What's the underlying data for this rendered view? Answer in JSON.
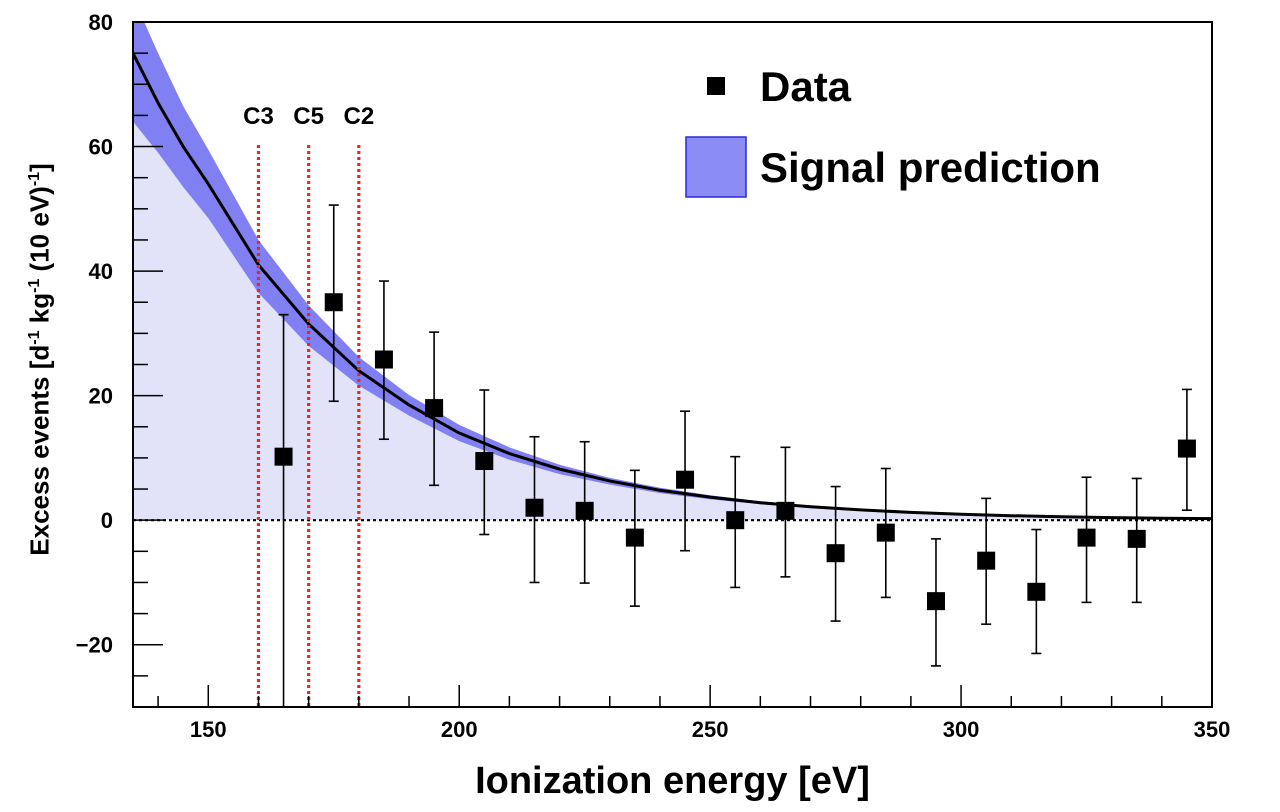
{
  "chart_data": {
    "type": "scatter",
    "xlabel": "Ionization energy [eV]",
    "ylabel": {
      "parts": [
        {
          "text": "Excess events [d",
          "sup": false
        },
        {
          "text": "-1",
          "sup": true
        },
        {
          "text": " kg",
          "sup": false
        },
        {
          "text": "-1",
          "sup": true
        },
        {
          "text": " (10 eV)",
          "sup": false
        },
        {
          "text": "-1",
          "sup": true
        },
        {
          "text": "]",
          "sup": false
        }
      ]
    },
    "xlim": [
      135,
      350
    ],
    "ylim": [
      -30,
      80
    ],
    "x_ticks": [
      150,
      200,
      250,
      300,
      350
    ],
    "x_tick_labels": [
      "150",
      "200",
      "250",
      "300",
      "350"
    ],
    "y_ticks": [
      -20,
      0,
      20,
      40,
      60,
      80
    ],
    "y_tick_labels": [
      "−20",
      "0",
      "20",
      "40",
      "60",
      "80"
    ],
    "legend": {
      "placement": "top-right",
      "entries": [
        {
          "label": "Data",
          "marker": "square",
          "color": "#000000"
        },
        {
          "label": "Signal prediction",
          "marker": "box",
          "color": "#8c8cf5"
        }
      ]
    },
    "vertical_lines": [
      {
        "label": "C3",
        "x": 160,
        "color": "#e8281e"
      },
      {
        "label": "C5",
        "x": 170,
        "color": "#e8281e"
      },
      {
        "label": "C2",
        "x": 180,
        "color": "#e8281e"
      }
    ],
    "zero_line": true,
    "series": [
      {
        "name": "Data",
        "type": "points-with-errorbars",
        "x": [
          165,
          175,
          185,
          195,
          205,
          215,
          225,
          235,
          245,
          255,
          265,
          275,
          285,
          295,
          305,
          315,
          325,
          335,
          345
        ],
        "y": [
          10.2,
          35.0,
          25.8,
          18.0,
          9.5,
          2.0,
          1.5,
          -2.8,
          6.5,
          0.0,
          1.5,
          -5.3,
          -2.0,
          -13.0,
          -6.5,
          -11.5,
          -2.8,
          -3.0,
          11.5
        ],
        "err_low": [
          43.2,
          15.9,
          12.8,
          12.4,
          11.8,
          12.0,
          11.6,
          11.0,
          11.4,
          10.8,
          10.6,
          10.9,
          10.4,
          10.4,
          10.2,
          9.9,
          10.4,
          10.2,
          9.9
        ],
        "err_high": [
          22.8,
          15.6,
          12.6,
          12.2,
          11.4,
          11.4,
          11.1,
          10.8,
          11.0,
          10.2,
          10.2,
          10.7,
          10.3,
          10.0,
          10.0,
          10.0,
          9.7,
          9.7,
          9.5
        ]
      },
      {
        "name": "Signal prediction",
        "type": "band",
        "color": "#8080f2",
        "fill_below_color": "#e2e2f8",
        "x": [
          135,
          140,
          145,
          150,
          160,
          170,
          180,
          190,
          200,
          210,
          220,
          230,
          240,
          250,
          260,
          270,
          280,
          290,
          300,
          310,
          320,
          330,
          340,
          350
        ],
        "central": [
          75.0,
          67.0,
          60.0,
          54.0,
          41.0,
          31.5,
          24.0,
          18.5,
          14.0,
          10.7,
          8.2,
          6.3,
          4.8,
          3.7,
          2.8,
          2.15,
          1.65,
          1.25,
          0.95,
          0.72,
          0.55,
          0.42,
          0.32,
          0.25
        ],
        "upper": [
          84.0,
          75.0,
          66.5,
          59.5,
          45.0,
          34.5,
          26.2,
          20.1,
          15.3,
          11.7,
          8.9,
          6.8,
          5.2,
          4.0,
          3.05,
          2.35,
          1.8,
          1.37,
          1.04,
          0.79,
          0.6,
          0.46,
          0.35,
          0.27
        ],
        "lower": [
          64.0,
          59.0,
          53.5,
          48.5,
          36.5,
          28.0,
          21.6,
          16.8,
          12.7,
          9.7,
          7.4,
          5.7,
          4.35,
          3.35,
          2.55,
          1.95,
          1.5,
          1.13,
          0.86,
          0.65,
          0.5,
          0.38,
          0.29,
          0.23
        ]
      }
    ]
  }
}
